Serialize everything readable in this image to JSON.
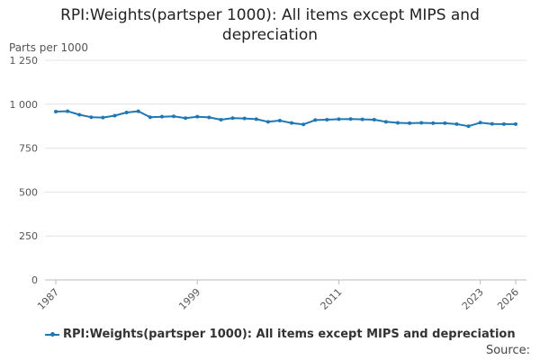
{
  "chart_data": {
    "type": "line",
    "title_line1": "RPI:Weights(partsper 1000): All items except MIPS and",
    "title_line2": "depreciation",
    "ylabel": "Parts per 1000",
    "xlabel": "",
    "ylim": [
      0,
      1250
    ],
    "yticks": [
      0,
      250,
      500,
      750,
      1000,
      1250
    ],
    "ytick_labels": [
      "0",
      "250",
      "500",
      "750",
      "1 000",
      "1 250"
    ],
    "xlim": [
      1987,
      2026
    ],
    "xticks": [
      1987,
      1999,
      2011,
      2023,
      2026
    ],
    "xtick_labels": [
      "1987",
      "1999",
      "2011",
      "2023",
      "2026"
    ],
    "grid": true,
    "legend_position": "bottom",
    "series": [
      {
        "name": "RPI:Weights(partsper 1000): All items except MIPS and depreciation",
        "color": "#1f77b4",
        "x": [
          1987,
          1988,
          1989,
          1990,
          1991,
          1992,
          1993,
          1994,
          1995,
          1996,
          1997,
          1998,
          1999,
          2000,
          2001,
          2002,
          2003,
          2004,
          2005,
          2006,
          2007,
          2008,
          2009,
          2010,
          2011,
          2012,
          2013,
          2014,
          2015,
          2016,
          2017,
          2018,
          2019,
          2020,
          2021,
          2022,
          2023,
          2024,
          2025,
          2026
        ],
        "values": [
          958,
          960,
          940,
          926,
          924,
          935,
          953,
          960,
          926,
          929,
          931,
          921,
          929,
          925,
          912,
          921,
          919,
          915,
          900,
          907,
          893,
          885,
          910,
          912,
          915,
          916,
          914,
          912,
          900,
          894,
          892,
          894,
          892,
          892,
          887,
          875,
          895,
          888,
          887,
          887
        ]
      }
    ]
  },
  "source_label": "Source:"
}
